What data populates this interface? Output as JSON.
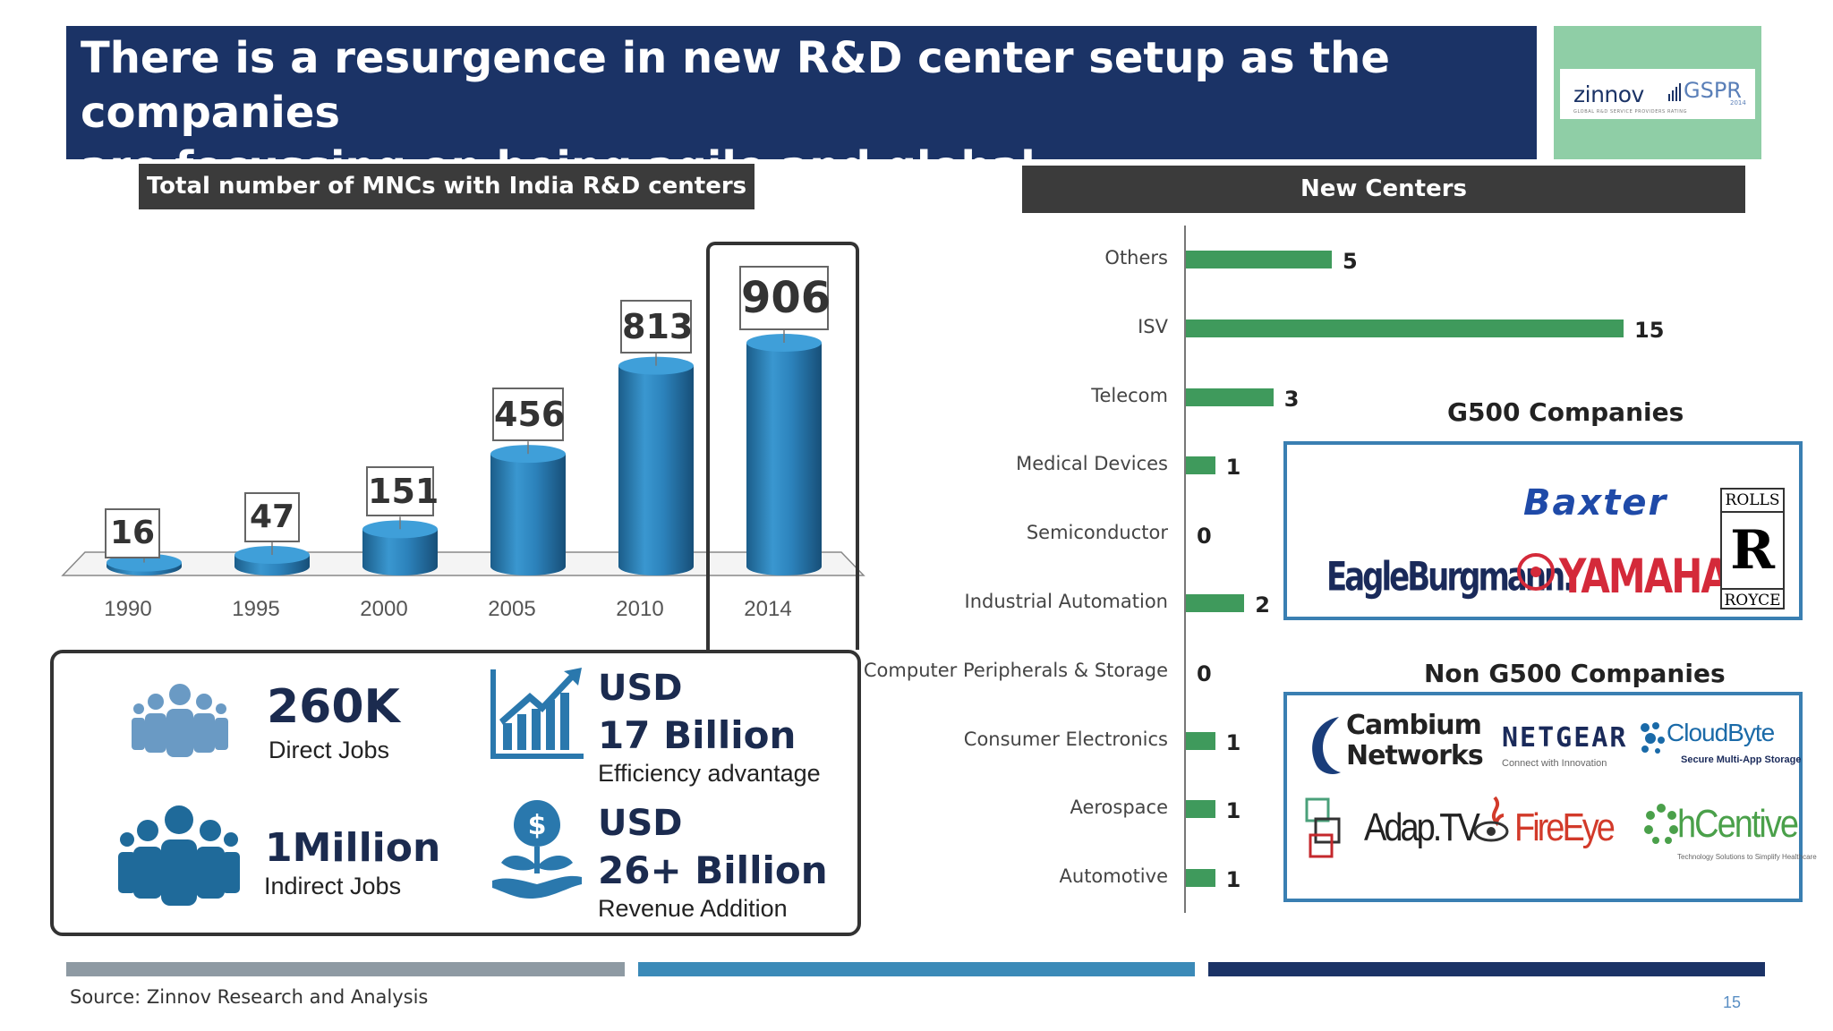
{
  "title": {
    "line1": "There is a resurgence in new R&D center setup as the companies",
    "line2": "are focussing on being agile and global"
  },
  "logo": {
    "brand": "zinnov",
    "product": "GSPR",
    "year": "2014",
    "tagline": "GLOBAL R&D SERVICE PROVIDERS RATING"
  },
  "left_chart_header": "Total number of MNCs with India R&D centers",
  "right_chart_header": "New Centers",
  "stats": {
    "direct_jobs": {
      "value": "260K",
      "label": "Direct Jobs",
      "icon": "people-group-icon"
    },
    "indirect_jobs": {
      "value": "1Million",
      "label": "Indirect Jobs",
      "icon": "people-group-icon"
    },
    "efficiency": {
      "prefix": "USD",
      "value": "17 Billion",
      "label": "Efficiency advantage",
      "icon": "growth-chart-icon"
    },
    "revenue": {
      "prefix": "USD",
      "value": "26+ Billion",
      "label": "Revenue Addition",
      "icon": "money-plant-hand-icon"
    }
  },
  "g500": {
    "title": "G500 Companies",
    "logos": [
      "Baxter",
      "EagleBurgmann.",
      "YAMAHA",
      "ROLLS",
      "ROYCE"
    ]
  },
  "non_g500": {
    "title": "Non G500 Companies",
    "logos": [
      "Cambium",
      "Networks",
      "NETGEAR",
      "Connect with Innovation",
      "CloudByte",
      "Secure Multi-App Storage",
      "Adap.TV",
      "FireEye",
      "hCentive",
      "Technology Solutions to Simplify Healthcare"
    ]
  },
  "source": "Source: Zinnov Research and Analysis",
  "page_number": "15",
  "colors": {
    "title_bg": "#1b3366",
    "logo_bg": "#8fcea6",
    "bar_blue": "#2e86c1",
    "bar_green": "#3f9a5c",
    "header_bg": "#3b3b3b"
  },
  "chart_data": [
    {
      "type": "bar",
      "title": "Total number of MNCs with India R&D centers",
      "categories": [
        "1990",
        "1995",
        "2000",
        "2005",
        "2010",
        "2014"
      ],
      "values": [
        16,
        47,
        151,
        456,
        813,
        906
      ],
      "ylim": [
        0,
        906
      ]
    },
    {
      "type": "bar",
      "orientation": "horizontal",
      "title": "New Centers",
      "categories": [
        "Others",
        "ISV",
        "Telecom",
        "Medical Devices",
        "Semiconductor",
        "Industrial Automation",
        "Computer Peripherals & Storage",
        "Consumer Electronics",
        "Aerospace",
        "Automotive"
      ],
      "values": [
        5,
        15,
        3,
        1,
        0,
        2,
        0,
        1,
        1,
        1
      ],
      "xlim": [
        0,
        15
      ]
    }
  ]
}
